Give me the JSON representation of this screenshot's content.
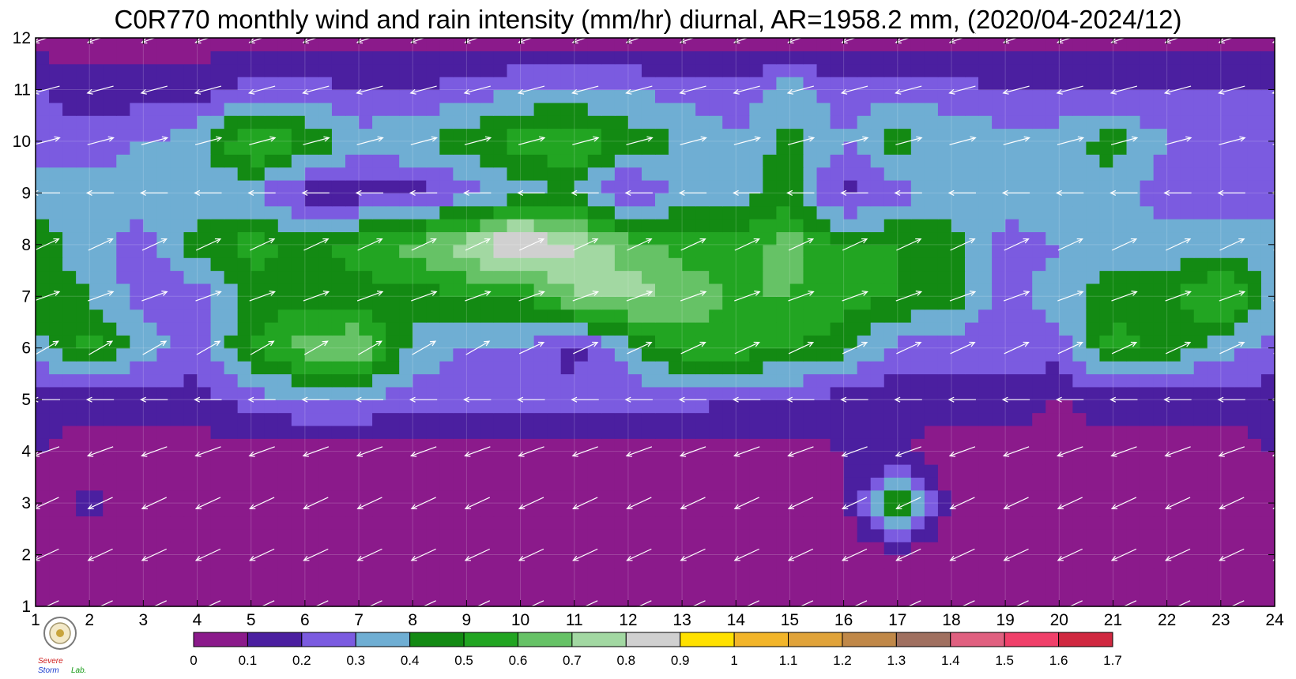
{
  "chart_data": {
    "type": "heatmap",
    "title": "C0R770 monthly wind and rain intensity (mm/hr) diurnal, AR=1958.2 mm, (2020/04-2024/12)",
    "xlabel": "",
    "ylabel": "",
    "x_ticks": [
      "1",
      "2",
      "3",
      "4",
      "5",
      "6",
      "7",
      "8",
      "9",
      "10",
      "11",
      "12",
      "13",
      "14",
      "15",
      "16",
      "17",
      "18",
      "19",
      "20",
      "21",
      "22",
      "23",
      "24"
    ],
    "y_ticks": [
      "1",
      "2",
      "3",
      "4",
      "5",
      "6",
      "7",
      "8",
      "9",
      "10",
      "11",
      "12"
    ],
    "xlim": [
      1,
      24
    ],
    "ylim": [
      1,
      12
    ],
    "grid": true,
    "colorbar": {
      "levels": [
        0,
        0.1,
        0.2,
        0.3,
        0.4,
        0.5,
        0.6,
        0.7,
        0.8,
        0.9,
        1,
        1.1,
        1.2,
        1.3,
        1.4,
        1.5,
        1.6,
        1.7
      ],
      "labels": [
        "0",
        "0.1",
        "0.2",
        "0.3",
        "0.4",
        "0.5",
        "0.6",
        "0.7",
        "0.8",
        "0.9",
        "1",
        "1.1",
        "1.2",
        "1.3",
        "1.4",
        "1.5",
        "1.6",
        "1.7"
      ],
      "colors": [
        "#8b1a8b",
        "#4b1fa0",
        "#7b5be0",
        "#6faed3",
        "#138a13",
        "#22a522",
        "#66c266",
        "#a2d8a2",
        "#d0d0d0",
        "#ffe100",
        "#f2b52a",
        "#e0a33a",
        "#c08848",
        "#a07060",
        "#e06080",
        "#f0406a",
        "#d02840"
      ]
    },
    "values": [
      [
        0.05,
        0.05,
        0.05,
        0.05,
        0.05,
        0.05,
        0.05,
        0.05,
        0.05,
        0.05,
        0.05,
        0.05,
        0.05,
        0.05,
        0.05,
        0.05,
        0.05,
        0.05,
        0.05,
        0.05,
        0.05,
        0.05,
        0.05,
        0.05
      ],
      [
        0.05,
        0.05,
        0.05,
        0.05,
        0.05,
        0.05,
        0.05,
        0.05,
        0.05,
        0.05,
        0.05,
        0.05,
        0.05,
        0.05,
        0.05,
        0.05,
        0.05,
        0.05,
        0.05,
        0.05,
        0.05,
        0.05,
        0.05,
        0.05
      ],
      [
        0.05,
        0.12,
        0.05,
        0.05,
        0.05,
        0.05,
        0.05,
        0.05,
        0.05,
        0.05,
        0.05,
        0.05,
        0.05,
        0.05,
        0.05,
        0.05,
        0.55,
        0.05,
        0.05,
        0.05,
        0.05,
        0.05,
        0.05,
        0.05
      ],
      [
        0.1,
        0.05,
        0.05,
        0.05,
        0.05,
        0.05,
        0.05,
        0.05,
        0.05,
        0.05,
        0.05,
        0.05,
        0.05,
        0.05,
        0.05,
        0.1,
        0.1,
        0.05,
        0.05,
        0.05,
        0.05,
        0.05,
        0.05,
        0.1
      ],
      [
        0.15,
        0.15,
        0.15,
        0.15,
        0.25,
        0.3,
        0.3,
        0.25,
        0.25,
        0.25,
        0.25,
        0.25,
        0.25,
        0.2,
        0.2,
        0.15,
        0.15,
        0.15,
        0.15,
        0.1,
        0.15,
        0.15,
        0.15,
        0.15
      ],
      [
        0.35,
        0.55,
        0.35,
        0.25,
        0.5,
        0.65,
        0.7,
        0.35,
        0.3,
        0.3,
        0.15,
        0.35,
        0.55,
        0.55,
        0.5,
        0.45,
        0.25,
        0.25,
        0.25,
        0.25,
        0.55,
        0.45,
        0.35,
        0.25
      ],
      [
        0.45,
        0.4,
        0.25,
        0.25,
        0.45,
        0.45,
        0.45,
        0.45,
        0.5,
        0.5,
        0.7,
        0.75,
        0.65,
        0.6,
        0.6,
        0.55,
        0.5,
        0.45,
        0.25,
        0.35,
        0.45,
        0.45,
        0.65,
        0.35
      ],
      [
        0.45,
        0.35,
        0.25,
        0.45,
        0.55,
        0.45,
        0.55,
        0.65,
        0.75,
        0.95,
        0.8,
        0.65,
        0.55,
        0.55,
        0.65,
        0.5,
        0.5,
        0.45,
        0.25,
        0.3,
        0.35,
        0.35,
        0.35,
        0.35
      ],
      [
        0.35,
        0.35,
        0.35,
        0.3,
        0.3,
        0.15,
        0.15,
        0.15,
        0.25,
        0.35,
        0.4,
        0.15,
        0.35,
        0.35,
        0.45,
        0.15,
        0.25,
        0.35,
        0.35,
        0.4,
        0.35,
        0.25,
        0.25,
        0.25
      ],
      [
        0.25,
        0.25,
        0.3,
        0.35,
        0.65,
        0.5,
        0.35,
        0.4,
        0.45,
        0.55,
        0.6,
        0.45,
        0.4,
        0.3,
        0.45,
        0.3,
        0.45,
        0.35,
        0.35,
        0.35,
        0.45,
        0.3,
        0.3,
        0.3
      ],
      [
        0.2,
        0.15,
        0.15,
        0.15,
        0.25,
        0.25,
        0.2,
        0.2,
        0.25,
        0.3,
        0.3,
        0.3,
        0.25,
        0.25,
        0.35,
        0.25,
        0.25,
        0.25,
        0.2,
        0.2,
        0.2,
        0.2,
        0.2,
        0.2
      ],
      [
        0.05,
        0.05,
        0.05,
        0.05,
        0.05,
        0.05,
        0.05,
        0.05,
        0.05,
        0.05,
        0.05,
        0.05,
        0.05,
        0.05,
        0.05,
        0.05,
        0.05,
        0.05,
        0.05,
        0.05,
        0.05,
        0.05,
        0.05,
        0.05
      ]
    ],
    "wind_direction_deg": [
      [
        205,
        205,
        205,
        205,
        205,
        205,
        205,
        205,
        205,
        205,
        205,
        205,
        205,
        205,
        205,
        205,
        205,
        205,
        205,
        205,
        205,
        205,
        205,
        205
      ],
      [
        205,
        205,
        205,
        205,
        205,
        205,
        205,
        205,
        205,
        205,
        205,
        205,
        205,
        205,
        205,
        205,
        205,
        205,
        205,
        205,
        205,
        205,
        205,
        205
      ],
      [
        205,
        205,
        205,
        205,
        205,
        205,
        205,
        205,
        205,
        205,
        205,
        205,
        205,
        205,
        205,
        205,
        205,
        205,
        205,
        205,
        205,
        205,
        205,
        205
      ],
      [
        200,
        200,
        200,
        200,
        200,
        200,
        200,
        200,
        200,
        200,
        200,
        200,
        200,
        200,
        200,
        200,
        200,
        200,
        200,
        200,
        200,
        200,
        200,
        200
      ],
      [
        180,
        180,
        180,
        180,
        180,
        180,
        180,
        180,
        180,
        180,
        180,
        180,
        180,
        180,
        180,
        180,
        180,
        180,
        180,
        180,
        180,
        180,
        180,
        180
      ],
      [
        30,
        30,
        30,
        30,
        30,
        30,
        30,
        30,
        30,
        25,
        25,
        25,
        25,
        25,
        25,
        25,
        25,
        25,
        25,
        25,
        25,
        25,
        25,
        25
      ],
      [
        20,
        20,
        20,
        20,
        20,
        20,
        20,
        20,
        20,
        20,
        20,
        20,
        20,
        20,
        20,
        20,
        20,
        20,
        20,
        20,
        20,
        20,
        20,
        20
      ],
      [
        25,
        25,
        25,
        25,
        25,
        25,
        25,
        25,
        25,
        25,
        25,
        25,
        25,
        25,
        25,
        25,
        25,
        25,
        25,
        25,
        25,
        25,
        25,
        25
      ],
      [
        180,
        180,
        180,
        180,
        180,
        180,
        180,
        180,
        180,
        180,
        180,
        180,
        180,
        180,
        180,
        180,
        180,
        180,
        180,
        180,
        180,
        180,
        180,
        180
      ],
      [
        15,
        15,
        15,
        15,
        15,
        15,
        15,
        15,
        15,
        15,
        15,
        15,
        15,
        15,
        15,
        15,
        15,
        15,
        15,
        15,
        15,
        15,
        15,
        15
      ],
      [
        195,
        195,
        195,
        195,
        195,
        195,
        195,
        195,
        195,
        195,
        195,
        195,
        195,
        195,
        195,
        195,
        195,
        195,
        195,
        195,
        195,
        195,
        195,
        195
      ],
      [
        200,
        200,
        200,
        200,
        200,
        200,
        200,
        200,
        200,
        200,
        200,
        200,
        200,
        200,
        200,
        200,
        200,
        200,
        200,
        200,
        200,
        200,
        200,
        200
      ]
    ]
  },
  "logo": {
    "text_lines": [
      "Severe",
      "Storm",
      "Lab."
    ]
  }
}
